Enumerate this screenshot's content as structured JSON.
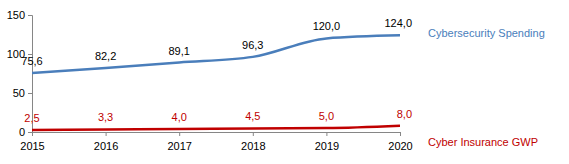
{
  "chart_data": {
    "type": "line",
    "x": [
      2015,
      2016,
      2017,
      2018,
      2019,
      2020
    ],
    "xlim": [
      2015,
      2020
    ],
    "xticks": [
      2015,
      2016,
      2017,
      2018,
      2019,
      2020
    ],
    "ylim": [
      0,
      150
    ],
    "yticks": [
      0,
      50,
      100,
      150
    ],
    "grid": false,
    "data_labels": true,
    "series": [
      {
        "name": "Cybersecurity Spending",
        "color": "#4a7ebb",
        "line_style": "smooth",
        "values": [
          75.6,
          82.2,
          89.1,
          96.3,
          120.0,
          124.0
        ],
        "value_labels": [
          "75,6",
          "82,2",
          "89,1",
          "96,3",
          "120,0",
          "124,0"
        ]
      },
      {
        "name": "Cyber Insurance GWP",
        "color": "#c00000",
        "line_style": "smooth",
        "values": [
          2.5,
          3.3,
          4.0,
          4.5,
          5.0,
          8.0
        ],
        "value_labels": [
          "2,5",
          "3,3",
          "4,0",
          "4,5",
          "5,0",
          "8,0"
        ]
      }
    ]
  }
}
